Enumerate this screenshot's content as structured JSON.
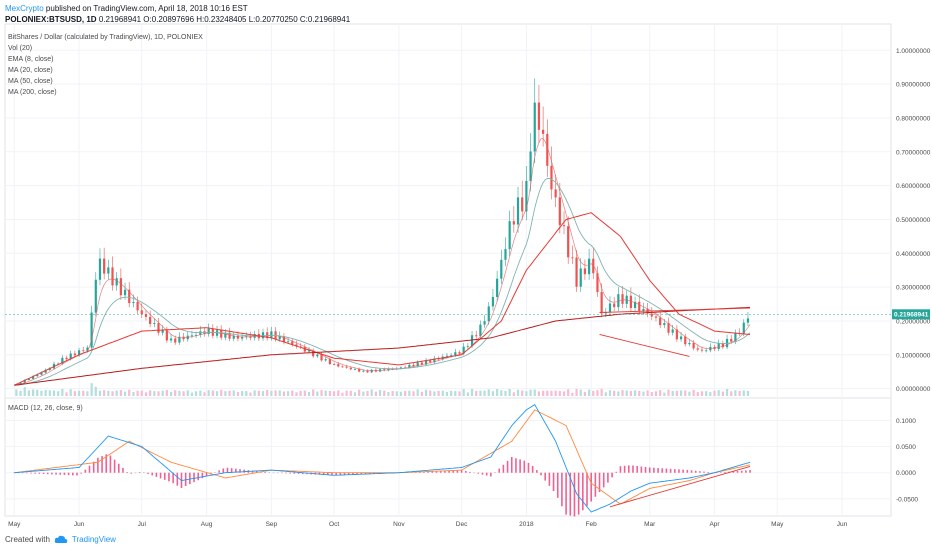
{
  "header": {
    "author": "MexCrypto",
    "published": "published on TradingView.com, April 18, 2018 10:16 EST",
    "symbol": "POLONIEX:BTSUSD, 1D",
    "ohlc": "0.21968941 O:0.20897696 H:0.23248405 L:0.20770250 C:0.21968941"
  },
  "legend": {
    "title": "BitShares / Dollar (calculated by TradingView), 1D, POLONIEX",
    "items": [
      "Vol (20)",
      "EMA (8, close)",
      "MA (20, close)",
      "MA (50, close)",
      "MA (200, close)"
    ]
  },
  "macd_legend": "MACD (12, 26, close, 9)",
  "footer": {
    "created": "Created with",
    "brand": "TradingView"
  },
  "colors": {
    "up": "#26a69a",
    "down": "#ef5350",
    "ema8": "#e06060",
    "ma20": "#7fb5b0",
    "ma50": "#e53935",
    "ma200": "#b71c1c",
    "macd": "#2196f3",
    "signal": "#ff8a3d",
    "hist": "#e91e63",
    "price_tag": "#26a69a",
    "brand": "#2196f3"
  },
  "chart_data": {
    "type": "line",
    "title": "BitShares / Dollar (calculated by TradingView), 1D, POLONIEX",
    "x_ticks": [
      "May",
      "Jun",
      "Jul",
      "Aug",
      "Sep",
      "Oct",
      "Nov",
      "Dec",
      "2018",
      "Feb",
      "Mar",
      "Apr",
      "May",
      "Jun"
    ],
    "price_axis": {
      "ticks": [
        "1.00000000",
        "0.90000000",
        "0.80000000",
        "0.70000000",
        "0.60000000",
        "0.50000000",
        "0.40000000",
        "0.30000000",
        "0.20000000",
        "0.10000000",
        "0.00000000"
      ],
      "range": [
        -0.01,
        1.06
      ]
    },
    "last_price": "0.21968941",
    "price_series": {
      "dates": [
        "2017-05-01",
        "2017-05-15",
        "2017-05-25",
        "2017-06-05",
        "2017-06-10",
        "2017-06-20",
        "2017-07-01",
        "2017-07-15",
        "2017-08-01",
        "2017-08-15",
        "2017-09-01",
        "2017-09-15",
        "2017-10-01",
        "2017-10-15",
        "2017-11-01",
        "2017-11-15",
        "2017-12-01",
        "2017-12-10",
        "2017-12-15",
        "2017-12-25",
        "2018-01-01",
        "2018-01-04",
        "2018-01-08",
        "2018-01-12",
        "2018-01-18",
        "2018-01-25",
        "2018-02-01",
        "2018-02-06",
        "2018-02-15",
        "2018-03-01",
        "2018-03-15",
        "2018-03-25",
        "2018-04-05",
        "2018-04-12",
        "2018-04-18"
      ],
      "close": [
        0.01,
        0.05,
        0.09,
        0.12,
        0.38,
        0.3,
        0.22,
        0.14,
        0.17,
        0.15,
        0.16,
        0.12,
        0.07,
        0.05,
        0.06,
        0.08,
        0.11,
        0.18,
        0.25,
        0.5,
        0.58,
        0.82,
        0.78,
        0.62,
        0.48,
        0.32,
        0.38,
        0.22,
        0.27,
        0.22,
        0.15,
        0.11,
        0.13,
        0.16,
        0.22
      ]
    },
    "ma50": {
      "dates": [
        "2017-05-01",
        "2017-06-01",
        "2017-07-01",
        "2017-08-01",
        "2017-09-01",
        "2017-10-01",
        "2017-11-01",
        "2017-12-01",
        "2017-12-20",
        "2018-01-01",
        "2018-01-20",
        "2018-02-01",
        "2018-02-15",
        "2018-03-01",
        "2018-03-15",
        "2018-04-01",
        "2018-04-18"
      ],
      "values": [
        0.01,
        0.1,
        0.17,
        0.18,
        0.15,
        0.09,
        0.07,
        0.1,
        0.2,
        0.35,
        0.5,
        0.52,
        0.45,
        0.32,
        0.22,
        0.17,
        0.16
      ]
    },
    "ma200": {
      "dates": [
        "2017-05-01",
        "2017-07-01",
        "2017-09-01",
        "2017-11-01",
        "2017-12-15",
        "2018-01-15",
        "2018-02-15",
        "2018-03-15",
        "2018-04-18"
      ],
      "values": [
        0.01,
        0.06,
        0.1,
        0.12,
        0.15,
        0.2,
        0.22,
        0.23,
        0.24
      ]
    },
    "macd_axis": {
      "ticks": [
        "0.1000",
        "0.0500",
        "0.0000",
        "-0.0500"
      ],
      "range": [
        -0.075,
        0.135
      ]
    },
    "macd": {
      "dates": [
        "2017-05-01",
        "2017-06-01",
        "2017-06-15",
        "2017-07-01",
        "2017-07-20",
        "2017-08-10",
        "2017-09-01",
        "2017-10-01",
        "2017-11-01",
        "2017-12-01",
        "2017-12-15",
        "2017-12-25",
        "2018-01-01",
        "2018-01-05",
        "2018-01-15",
        "2018-01-25",
        "2018-02-01",
        "2018-02-10",
        "2018-02-20",
        "2018-03-01",
        "2018-03-20",
        "2018-04-01",
        "2018-04-18"
      ],
      "values": [
        0.0,
        0.01,
        0.07,
        0.05,
        -0.015,
        0.0,
        0.005,
        -0.005,
        0.0,
        0.01,
        0.03,
        0.09,
        0.12,
        0.13,
        0.06,
        -0.04,
        -0.075,
        -0.06,
        -0.035,
        -0.02,
        -0.01,
        0.0,
        0.02
      ]
    },
    "signal": {
      "dates": [
        "2017-05-01",
        "2017-06-10",
        "2017-06-25",
        "2017-07-15",
        "2017-08-10",
        "2017-09-01",
        "2017-10-01",
        "2017-11-01",
        "2017-12-01",
        "2017-12-25",
        "2018-01-05",
        "2018-01-20",
        "2018-02-01",
        "2018-02-15",
        "2018-03-01",
        "2018-03-20",
        "2018-04-01",
        "2018-04-18"
      ],
      "values": [
        0.0,
        0.02,
        0.06,
        0.02,
        -0.01,
        0.005,
        0.0,
        0.0,
        0.005,
        0.06,
        0.12,
        0.09,
        -0.02,
        -0.06,
        -0.03,
        -0.015,
        0.0,
        0.015
      ]
    }
  }
}
